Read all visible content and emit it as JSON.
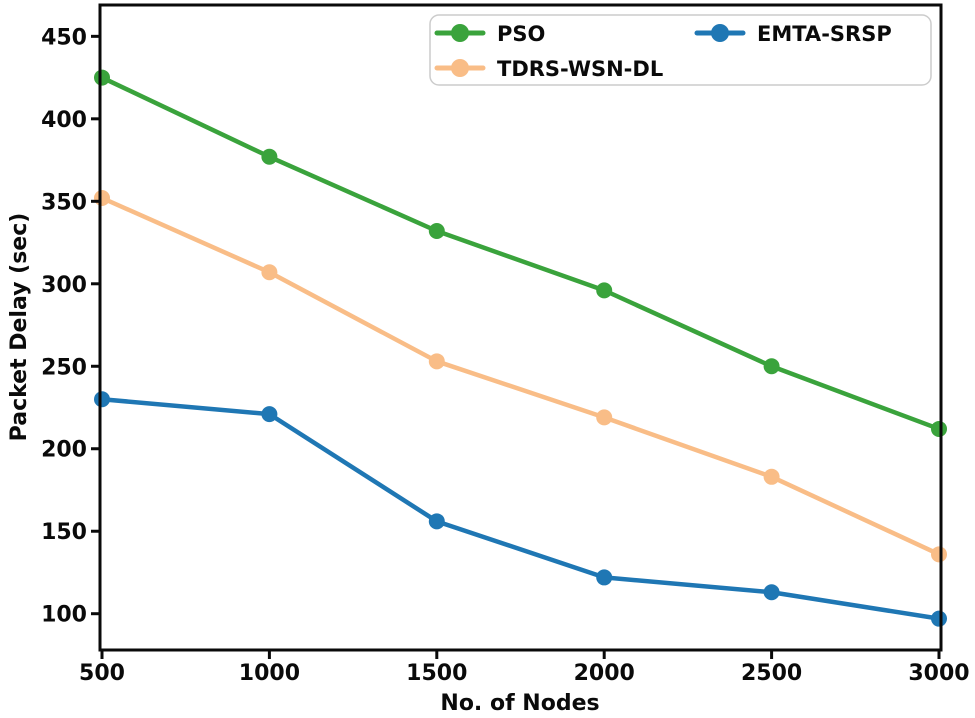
{
  "chart_data": {
    "type": "line",
    "title": "",
    "xlabel": "No. of Nodes",
    "ylabel": "Packet Delay (sec)",
    "x": [
      500,
      1000,
      1500,
      2000,
      2500,
      3000
    ],
    "series": [
      {
        "name": "PSO",
        "color": "#3aa33c",
        "values": [
          425,
          377,
          332,
          296,
          250,
          212
        ]
      },
      {
        "name": "TDRS-WSN-DL",
        "color": "#f9bd87",
        "values": [
          352,
          307,
          253,
          219,
          183,
          136
        ]
      },
      {
        "name": "EMTA-SRSP",
        "color": "#1f77b4",
        "values": [
          230,
          221,
          156,
          122,
          113,
          97
        ]
      }
    ],
    "xticks": [
      500,
      1000,
      1500,
      2000,
      2500,
      3000
    ],
    "yticks": [
      100,
      150,
      200,
      250,
      300,
      350,
      400,
      450
    ],
    "xlim": [
      500,
      3000
    ],
    "ylim": [
      78,
      469
    ],
    "grid": false,
    "marker": "circle",
    "legend": {
      "position": "upper center",
      "columns": 2,
      "entries": [
        "PSO",
        "TDRS-WSN-DL",
        "EMTA-SRSP"
      ],
      "border_color": "#cccccc",
      "background": "#ffffff"
    },
    "axis_color": "#0a0a0a",
    "text_color": "#0a0a0a"
  }
}
